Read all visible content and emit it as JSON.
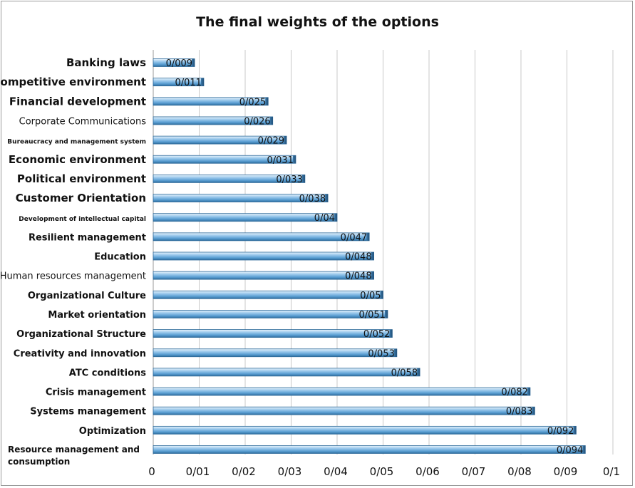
{
  "chart_data": {
    "type": "bar",
    "orientation": "horizontal",
    "title": "The final weights of the options",
    "xlabel": "",
    "ylabel": "",
    "xlim": [
      0,
      0.1
    ],
    "grid": true,
    "legend": "none",
    "bar_color": "#6aaad8",
    "categories": [
      "Banking laws",
      "Competitive environment",
      "Financial development",
      "Corporate Communications",
      "Bureaucracy and management system",
      "Economic environment",
      "Political environment",
      "Customer Orientation",
      "Development of intellectual capital",
      "Resilient management",
      "Education",
      "Human resources management",
      "Organizational Culture",
      "Market orientation",
      "Organizational Structure",
      "Creativity and innovation",
      "ATC conditions",
      "Crisis management",
      "Systems management",
      "Optimization",
      "Resource management and consumption"
    ],
    "values": [
      0.009,
      0.011,
      0.025,
      0.026,
      0.029,
      0.031,
      0.033,
      0.038,
      0.04,
      0.047,
      0.048,
      0.048,
      0.05,
      0.051,
      0.052,
      0.053,
      0.058,
      0.082,
      0.083,
      0.092,
      0.094
    ],
    "value_labels": [
      "0/009",
      "0/011",
      "0/025",
      "0/026",
      "0/029",
      "0/031",
      "0/033",
      "0/038",
      "0/04",
      "0/047",
      "0/048",
      "0/048",
      "0/05",
      "0/051",
      "0/052",
      "0/053",
      "0/058",
      "0/082",
      "0/083",
      "0/092",
      "0/094"
    ],
    "ticks": [
      0,
      0.01,
      0.02,
      0.03,
      0.04,
      0.05,
      0.06,
      0.07,
      0.08,
      0.09,
      0.1
    ],
    "tick_labels": [
      "0",
      "0/01",
      "0/02",
      "0/03",
      "0/04",
      "0/05",
      "0/06",
      "0/07",
      "0/08",
      "0/09",
      "0/1"
    ]
  }
}
